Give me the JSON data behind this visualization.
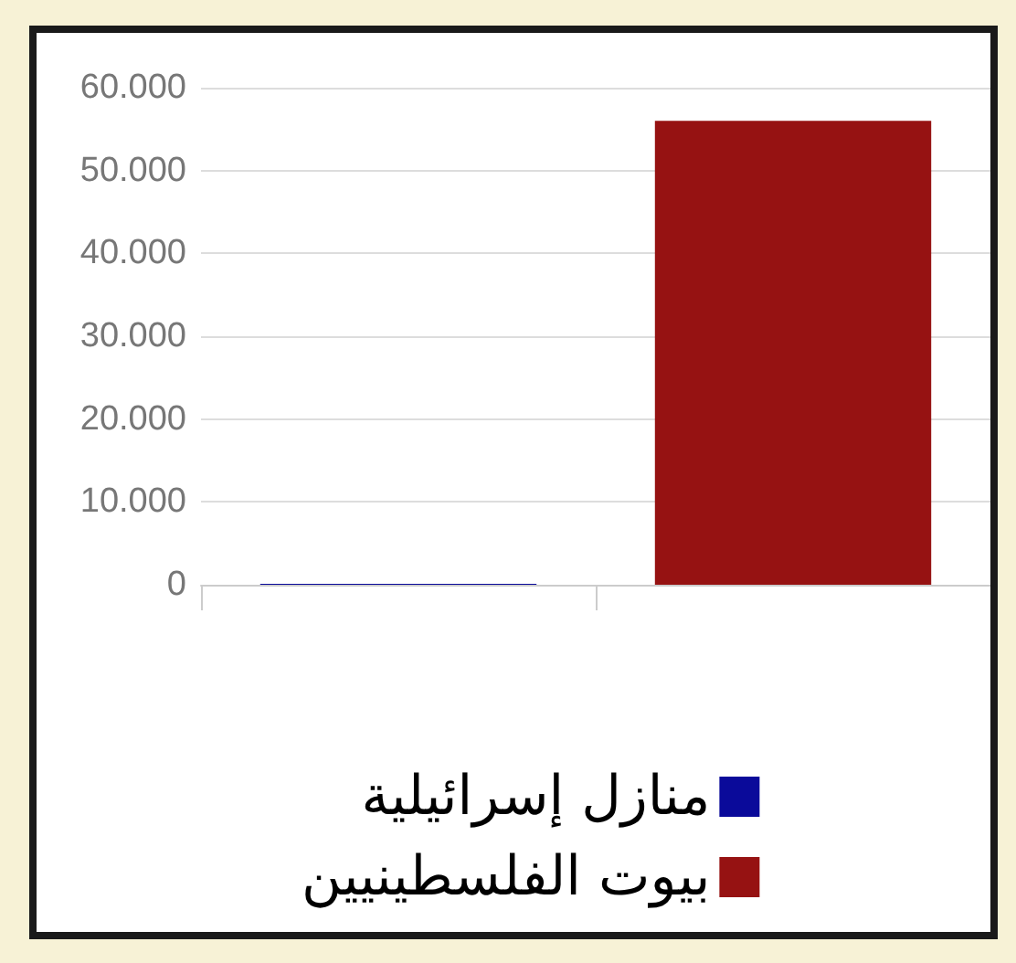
{
  "chart_data": {
    "type": "bar",
    "categories": [
      null,
      null
    ],
    "series": [
      {
        "name": "منازل إسرائيلية",
        "color": "#0a0a9a",
        "values": [
          100,
          null
        ]
      },
      {
        "name": "بيوت الفلسطينيين",
        "color": "#961212",
        "values": [
          null,
          56000
        ]
      }
    ],
    "ylim": [
      0,
      60000
    ],
    "yticks": [
      {
        "value": 0,
        "label": "0"
      },
      {
        "value": 10000,
        "label": "10.000"
      },
      {
        "value": 20000,
        "label": "20.000"
      },
      {
        "value": 30000,
        "label": "30.000"
      },
      {
        "value": 40000,
        "label": "40.000"
      },
      {
        "value": 50000,
        "label": "50.000"
      },
      {
        "value": 60000,
        "label": "60.000"
      }
    ],
    "grid": "y",
    "legend": "bottom"
  }
}
